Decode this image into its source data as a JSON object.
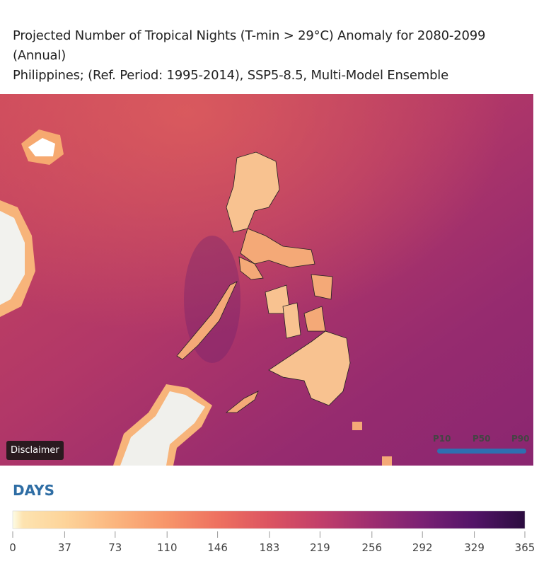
{
  "header": {
    "title_line_1": "Projected Number of Tropical Nights (T-min > 29°C) Anomaly for 2080-2099",
    "title_line_2": "(Annual)",
    "subtitle": "Philippines; (Ref. Period: 1995-2014), SSP5-8.5, Multi-Model Ensemble"
  },
  "map": {
    "disclaimer": "Disclaimer",
    "percentiles": [
      "P10",
      "P50",
      "P90"
    ]
  },
  "legend": {
    "title": "DAYS",
    "ticks": [
      0,
      37,
      73,
      110,
      146,
      183,
      219,
      256,
      292,
      329,
      365
    ]
  }
}
